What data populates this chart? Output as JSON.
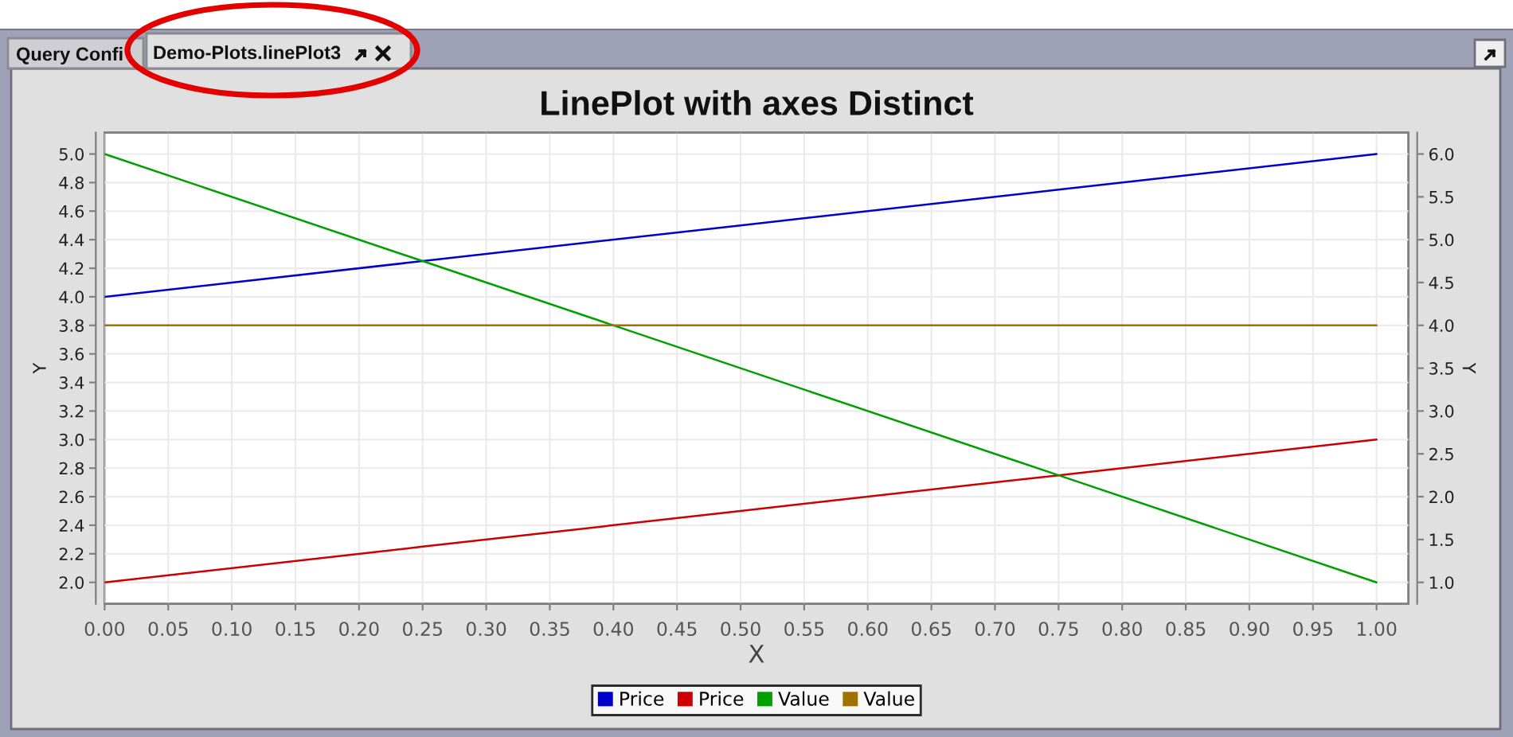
{
  "chart_data": {
    "type": "line",
    "title": "LinePlot with axes Distinct",
    "xlabel": "X",
    "ylabel": "Y",
    "y2label": "Y",
    "annotations": [
      "Query Confi",
      "Demo-Plots.linePlot3"
    ],
    "x": [
      0,
      0.25,
      0.5,
      0.75,
      1
    ],
    "series": [
      {
        "name": "Price",
        "color": "#0000cc",
        "values": [
          4.0,
          4.25,
          4.5,
          4.75,
          5.0
        ]
      },
      {
        "name": "Price",
        "color": "#cc0000",
        "values": [
          2.0,
          2.25,
          2.5,
          2.75,
          3.0
        ]
      },
      {
        "name": "Value",
        "color": "#00a000",
        "axis": "y2",
        "values": [
          6.0,
          4.75,
          3.5,
          2.25,
          1.0
        ]
      },
      {
        "name": "Value",
        "color": "#a07000",
        "axis": "y2",
        "values": [
          4.0,
          4.0,
          4.0,
          4.0,
          4.0
        ]
      }
    ],
    "xlim": [
      0,
      1.025
    ],
    "xticks": [
      {
        "value": 0,
        "label": "0.00"
      },
      0.05,
      {
        "value": 0.1,
        "label": "0.10"
      },
      0.15,
      {
        "value": 0.2,
        "label": "0.20"
      },
      0.25,
      {
        "value": 0.3,
        "label": "0.30"
      },
      0.35,
      {
        "value": 0.4,
        "label": "0.40"
      },
      0.45,
      {
        "value": 0.5,
        "label": "0.50"
      },
      0.55,
      {
        "value": 0.6,
        "label": "0.60"
      },
      0.65,
      {
        "value": 0.7,
        "label": "0.70"
      },
      0.75,
      {
        "value": 0.8,
        "label": "0.80"
      },
      0.85,
      {
        "value": 0.9,
        "label": "0.90"
      },
      0.95,
      {
        "value": 1,
        "label": "1.00"
      }
    ],
    "ylim": [
      1.85,
      5.15
    ],
    "yticks": [
      {
        "value": 2,
        "label": "2.0"
      },
      2.2,
      2.4,
      2.6,
      2.8,
      {
        "value": 3,
        "label": "3.0"
      },
      3.2,
      3.4,
      3.6,
      3.8,
      {
        "value": 4,
        "label": "4.0"
      },
      4.2,
      4.4,
      4.6,
      4.8,
      {
        "value": 5,
        "label": "5.0"
      }
    ],
    "y2lim": [
      0.75,
      6.25
    ],
    "y2ticks": [
      {
        "value": 1,
        "label": "1.0"
      },
      1.5,
      {
        "value": 2,
        "label": "2.0"
      },
      2.5,
      {
        "value": 3,
        "label": "3.0"
      },
      3.5,
      {
        "value": 4,
        "label": "4.0"
      },
      4.5,
      {
        "value": 5,
        "label": "5.0"
      },
      5.5,
      {
        "value": 6,
        "label": "6.0"
      }
    ],
    "grid": true,
    "legend": "bottom"
  }
}
